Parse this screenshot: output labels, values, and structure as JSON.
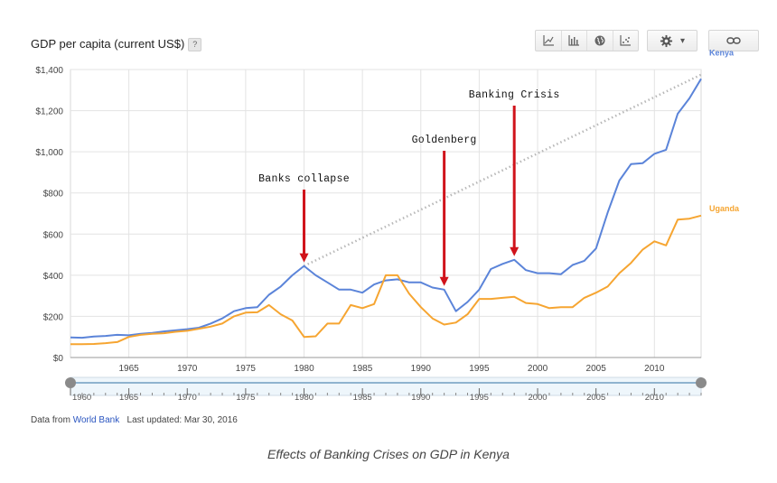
{
  "header": {
    "title": "GDP per capita (current US$)",
    "help_label": "?"
  },
  "toolbar": {
    "line_icon": "line-chart-icon",
    "bar_icon": "bar-chart-icon",
    "map_icon": "globe-icon",
    "scatter_icon": "scatter-chart-icon",
    "settings_icon": "gear-icon",
    "settings_caret": "▾",
    "link_icon": "link-icon"
  },
  "footer": {
    "source_prefix": "Data from",
    "source_link": "World Bank",
    "updated": "Last updated: Mar 30, 2016"
  },
  "caption": "Effects of Banking Crises on GDP in Kenya",
  "colors": {
    "kenya": "#5b84d9",
    "uganda": "#f6a531",
    "annotation": "#d0131b",
    "trend": "#b8b8b8"
  },
  "chart_data": {
    "type": "line",
    "title": "GDP per capita (current US$)",
    "xlim": [
      1960,
      2014
    ],
    "ylim": [
      0,
      1400
    ],
    "x_ticks": [
      1965,
      1970,
      1975,
      1980,
      1985,
      1990,
      1995,
      2000,
      2005,
      2010
    ],
    "x_tick_labels": [
      "1965",
      "1970",
      "1975",
      "1980",
      "1985",
      "1990",
      "1995",
      "2000",
      "2005",
      "2010"
    ],
    "y_ticks": [
      0,
      200,
      400,
      600,
      800,
      1000,
      1200,
      1400
    ],
    "y_tick_labels": [
      "$0",
      "$200",
      "$400",
      "$600",
      "$800",
      "$1,000",
      "$1,200",
      "$1,400"
    ],
    "grid": true,
    "legend": "right",
    "x": [
      1960,
      1961,
      1962,
      1963,
      1964,
      1965,
      1966,
      1967,
      1968,
      1969,
      1970,
      1971,
      1972,
      1973,
      1974,
      1975,
      1976,
      1977,
      1978,
      1979,
      1980,
      1981,
      1982,
      1983,
      1984,
      1985,
      1986,
      1987,
      1988,
      1989,
      1990,
      1991,
      1992,
      1993,
      1994,
      1995,
      1996,
      1997,
      1998,
      1999,
      2000,
      2001,
      2002,
      2003,
      2004,
      2005,
      2006,
      2007,
      2008,
      2009,
      2010,
      2011,
      2012,
      2013,
      2014
    ],
    "series": [
      {
        "name": "Kenya",
        "values": [
          98,
          96,
          102,
          105,
          110,
          108,
          115,
          120,
          127,
          132,
          138,
          145,
          165,
          190,
          225,
          240,
          245,
          305,
          345,
          400,
          445,
          400,
          365,
          330,
          330,
          315,
          355,
          375,
          380,
          365,
          365,
          340,
          330,
          225,
          270,
          330,
          430,
          455,
          475,
          425,
          410,
          410,
          405,
          450,
          470,
          530,
          705,
          860,
          940,
          945,
          990,
          1010,
          1185,
          1260,
          1355
        ]
      },
      {
        "name": "Uganda",
        "values": [
          65,
          65,
          66,
          70,
          75,
          100,
          110,
          115,
          118,
          125,
          130,
          140,
          150,
          165,
          200,
          218,
          220,
          255,
          210,
          180,
          100,
          103,
          165,
          165,
          255,
          240,
          260,
          400,
          400,
          310,
          245,
          190,
          160,
          170,
          210,
          285,
          285,
          290,
          295,
          265,
          260,
          240,
          245,
          245,
          290,
          315,
          345,
          410,
          460,
          525,
          565,
          545,
          670,
          675,
          690
        ]
      }
    ],
    "annotations": [
      {
        "text": "Banks collapse",
        "x": 1980,
        "y": 445
      },
      {
        "text": "Goldenberg",
        "x": 1992,
        "y": 330
      },
      {
        "text": "Banking Crisis",
        "x": 1998,
        "y": 475
      }
    ],
    "trend_line": {
      "from": [
        1980,
        445
      ],
      "to": [
        2014,
        1375
      ]
    },
    "range_slider": {
      "labels": [
        "1960",
        "1965",
        "1970",
        "1975",
        "1980",
        "1985",
        "1990",
        "1995",
        "2000",
        "2005",
        "2010"
      ],
      "ticks": [
        1960,
        1965,
        1970,
        1975,
        1980,
        1985,
        1990,
        1995,
        2000,
        2005,
        2010
      ]
    }
  }
}
